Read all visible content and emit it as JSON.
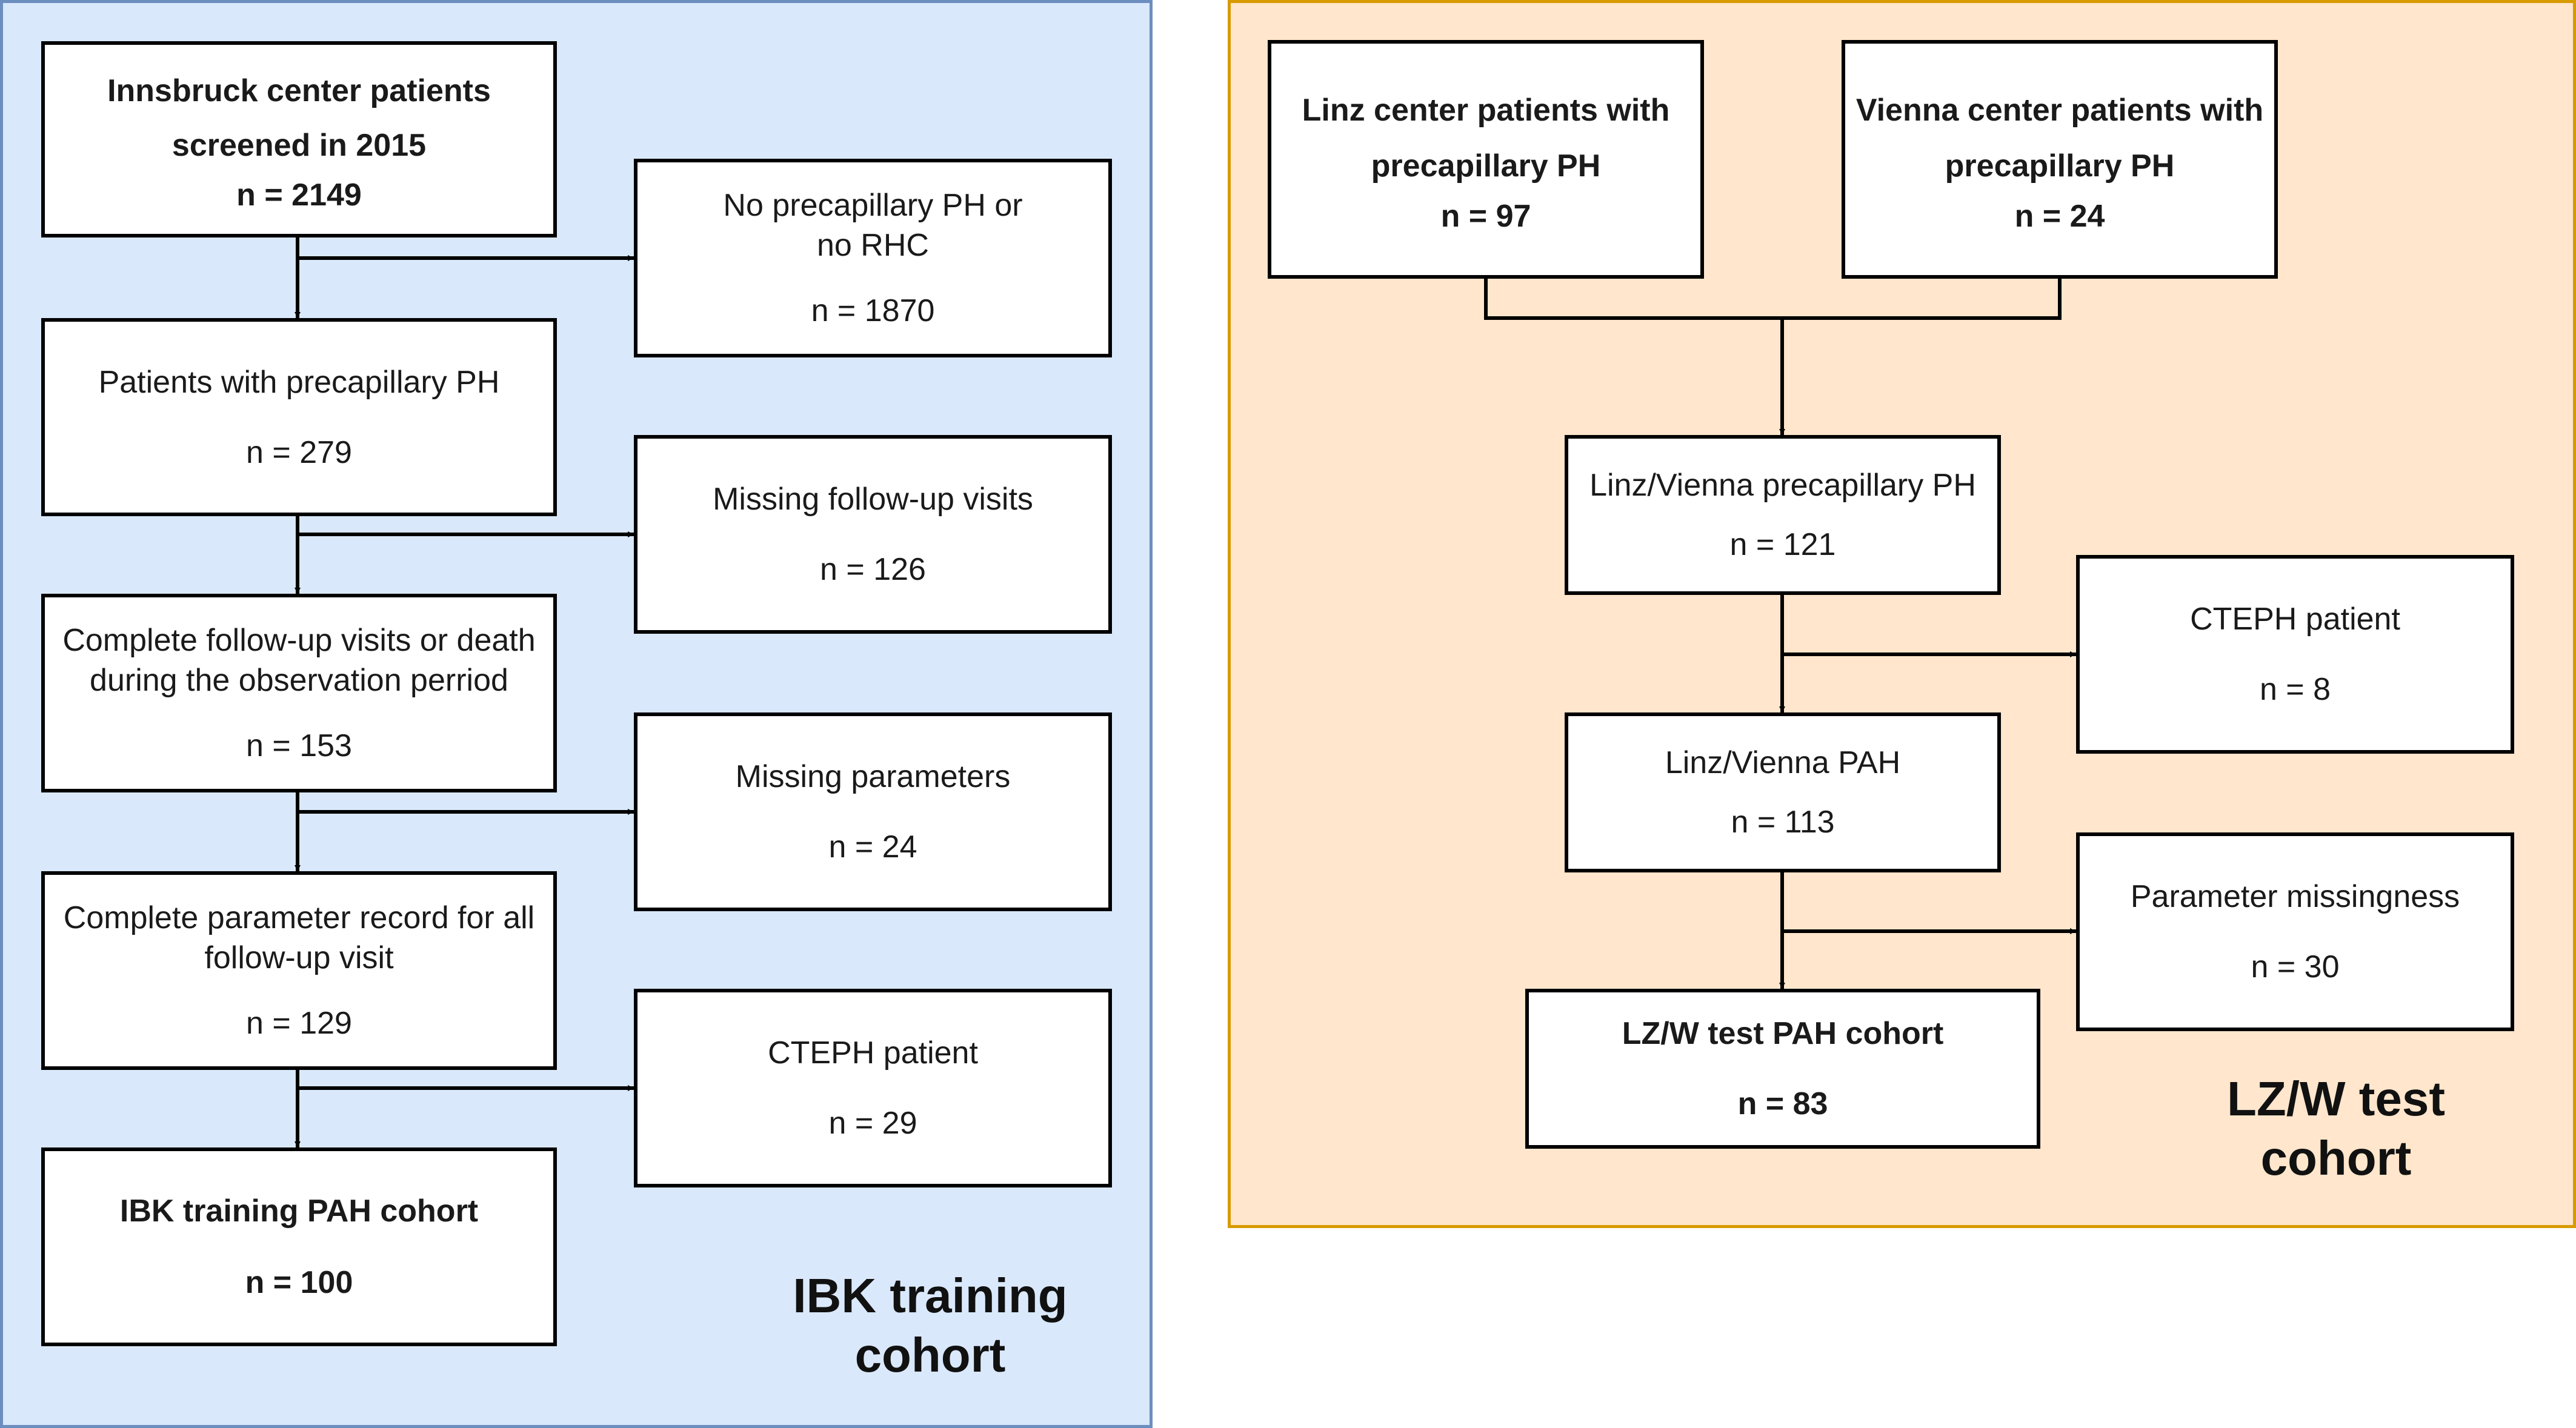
{
  "training": {
    "label": "IBK training\ncohort",
    "main_boxes": [
      {
        "title": "Innsbruck center patients\nscreened in 2015",
        "n": "n = 2149",
        "bold": true
      },
      {
        "title": "Patients with precapillary PH",
        "n": "n = 279",
        "bold": false
      },
      {
        "title": "Complete follow-up visits or death\nduring the observation perriod",
        "n": "n = 153",
        "bold": false
      },
      {
        "title": "Complete parameter record for all\nfollow-up visit",
        "n": "n = 129",
        "bold": false
      },
      {
        "title": "IBK training PAH cohort",
        "n": "n = 100",
        "bold": true
      }
    ],
    "exclusion_boxes": [
      {
        "title": "No precapillary PH or\nno RHC",
        "n": "n = 1870"
      },
      {
        "title": "Missing follow-up visits",
        "n": "n = 126"
      },
      {
        "title": "Missing parameters",
        "n": "n = 24"
      },
      {
        "title": "CTEPH patient",
        "n": "n = 29"
      }
    ]
  },
  "test": {
    "label": "LZ/W test\ncohort",
    "source_boxes": [
      {
        "title": "Linz center patients with\nprecapillary PH",
        "n": "n = 97",
        "bold": true
      },
      {
        "title": "Vienna center patients with\nprecapillary PH",
        "n": "n = 24",
        "bold": true
      }
    ],
    "main_boxes": [
      {
        "title": "Linz/Vienna precapillary PH",
        "n": "n = 121",
        "bold": false
      },
      {
        "title": "Linz/Vienna PAH",
        "n": "n = 113",
        "bold": false
      },
      {
        "title": "LZ/W test PAH cohort",
        "n": "n = 83",
        "bold": true
      }
    ],
    "exclusion_boxes": [
      {
        "title": "CTEPH patient",
        "n": "n = 8"
      },
      {
        "title": "Parameter missingness",
        "n": "n = 30"
      }
    ]
  }
}
